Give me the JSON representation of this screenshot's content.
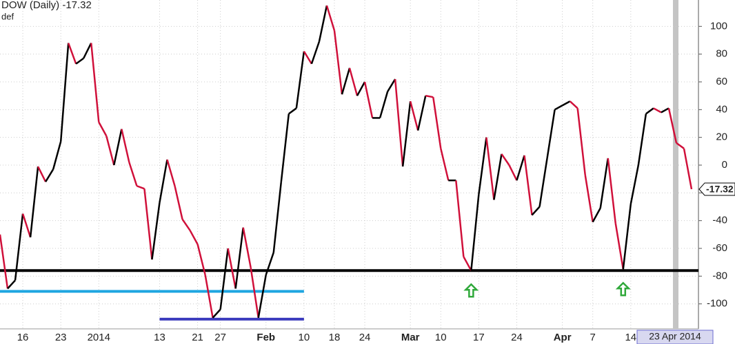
{
  "chart_data": {
    "type": "line",
    "title": "DOW (Daily) -17.32",
    "subtitle": "def",
    "categories": [
      null,
      null,
      null,
      "16",
      null,
      null,
      null,
      null,
      "23",
      null,
      null,
      null,
      null,
      "2014",
      null,
      null,
      null,
      null,
      null,
      null,
      null,
      "13",
      null,
      null,
      null,
      null,
      "21",
      null,
      null,
      "27",
      null,
      null,
      null,
      null,
      null,
      "Feb",
      null,
      null,
      null,
      null,
      "10",
      null,
      null,
      null,
      "18",
      null,
      null,
      null,
      "24",
      null,
      null,
      null,
      null,
      null,
      "Mar",
      null,
      null,
      null,
      "10",
      null,
      null,
      null,
      null,
      "17",
      null,
      null,
      null,
      null,
      "24",
      null,
      null,
      null,
      null,
      null,
      "Apr",
      null,
      null,
      null,
      "7",
      null,
      null,
      null,
      null,
      "14",
      null,
      null,
      null,
      null,
      null,
      null,
      null,
      null
    ],
    "series": [
      {
        "values": [
          -50,
          -89,
          -83,
          -35,
          -52,
          -1,
          -12,
          -3,
          17,
          88,
          73,
          77,
          88,
          31,
          21,
          0,
          26,
          2,
          -15,
          -17,
          -68,
          -27,
          4,
          -15,
          -39,
          -47,
          -57,
          -79,
          -110,
          -104,
          -60,
          -89,
          -45,
          -74,
          -110,
          -79,
          -63,
          -12,
          37,
          41,
          82,
          73,
          89,
          115,
          97,
          51,
          70,
          50,
          60,
          34,
          34,
          53,
          62,
          -1,
          46,
          25,
          50,
          49,
          12,
          -11,
          -11,
          -66,
          -76,
          -21,
          20,
          -25,
          8,
          0,
          -11,
          7,
          -36,
          -30,
          5,
          40,
          43,
          46,
          41,
          -7,
          -41,
          -31,
          5,
          -42,
          -75,
          -28,
          0,
          37,
          41,
          38,
          41,
          16,
          12,
          -17.32
        ],
        "up_color": "#000000",
        "down_color": "#d0103a"
      }
    ],
    "ylim": [
      -118,
      119
    ],
    "yticks": [
      -100,
      -80,
      -60,
      -40,
      -20,
      0,
      20,
      40,
      60,
      80,
      100
    ],
    "grid": true,
    "hlines": [
      {
        "value": -76,
        "color": "#000000"
      },
      {
        "value": -91,
        "color": "#1ea6e0",
        "start": 0,
        "end": 40
      },
      {
        "value": -111,
        "color": "#3b3bbd",
        "start": 21,
        "end": 40
      }
    ],
    "arrows": {
      "indices": [
        62,
        82
      ],
      "color": "#2fa83a"
    },
    "cursor_label": "23 Apr 2014"
  }
}
